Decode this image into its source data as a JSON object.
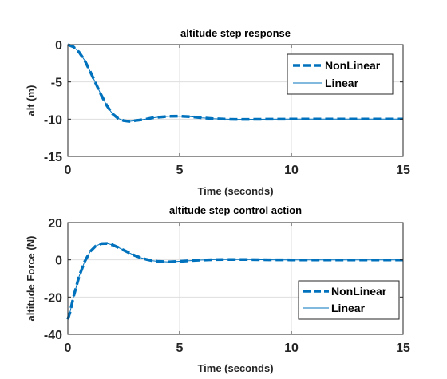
{
  "chart_data": [
    {
      "type": "line",
      "title": "altitude step response",
      "xlabel": "Time (seconds)",
      "ylabel": "alt (m)",
      "xlim": [
        0,
        15
      ],
      "ylim": [
        -15,
        0
      ],
      "xticks": [
        0,
        5,
        10,
        15
      ],
      "yticks": [
        0,
        -5,
        -10,
        -15
      ],
      "xtick_labels": [
        "0",
        "5",
        "10",
        "15"
      ],
      "ytick_labels": [
        "0",
        "-5",
        "-10",
        "-15"
      ],
      "grid": true,
      "legend": "top-right",
      "x": [
        0,
        0.25,
        0.5,
        0.75,
        1.0,
        1.25,
        1.5,
        1.75,
        2.0,
        2.25,
        2.5,
        2.75,
        3.0,
        3.25,
        3.5,
        3.75,
        4.0,
        4.5,
        5.0,
        5.5,
        6.0,
        6.5,
        7.0,
        7.5,
        8.0,
        9.0,
        10.0,
        11.0,
        12.0,
        13.0,
        14.0,
        15.0
      ],
      "series": [
        {
          "name": "NonLinear",
          "style": "dashed-thick",
          "color": "#0072BD",
          "values": [
            0,
            -0.3,
            -1.0,
            -2.1,
            -3.6,
            -5.2,
            -6.8,
            -8.2,
            -9.3,
            -9.9,
            -10.2,
            -10.3,
            -10.2,
            -10.1,
            -10.0,
            -9.85,
            -9.75,
            -9.62,
            -9.6,
            -9.68,
            -9.82,
            -9.93,
            -10.0,
            -10.03,
            -10.03,
            -10.01,
            -10.0,
            -10.0,
            -10.0,
            -10.0,
            -10.0,
            -10.0
          ]
        },
        {
          "name": "Linear",
          "style": "solid-thin",
          "color": "#0072BD",
          "values": [
            0,
            -0.3,
            -1.0,
            -2.1,
            -3.6,
            -5.2,
            -6.8,
            -8.2,
            -9.3,
            -9.9,
            -10.2,
            -10.3,
            -10.2,
            -10.1,
            -10.0,
            -9.85,
            -9.75,
            -9.62,
            -9.6,
            -9.68,
            -9.82,
            -9.93,
            -10.0,
            -10.03,
            -10.03,
            -10.01,
            -10.0,
            -10.0,
            -10.0,
            -10.0,
            -10.0,
            -10.0
          ]
        }
      ]
    },
    {
      "type": "line",
      "title": "altitude step control action",
      "xlabel": "Time (seconds)",
      "ylabel": "altitude Force (N)",
      "xlim": [
        0,
        15
      ],
      "ylim": [
        -40,
        20
      ],
      "xticks": [
        0,
        5,
        10,
        15
      ],
      "yticks": [
        20,
        0,
        -20,
        -40
      ],
      "xtick_labels": [
        "0",
        "5",
        "10",
        "15"
      ],
      "ytick_labels": [
        "20",
        "0",
        "-20",
        "-40"
      ],
      "grid": true,
      "legend": "bottom-right",
      "x": [
        0,
        0.1,
        0.25,
        0.5,
        0.75,
        1.0,
        1.25,
        1.5,
        1.75,
        2.0,
        2.25,
        2.5,
        2.75,
        3.0,
        3.25,
        3.5,
        3.75,
        4.0,
        4.5,
        5.0,
        5.5,
        6.0,
        6.5,
        7.0,
        7.5,
        8.0,
        9.0,
        10.0,
        11.0,
        12.0,
        13.0,
        14.0,
        15.0
      ],
      "series": [
        {
          "name": "NonLinear",
          "style": "dashed-thick",
          "color": "#0072BD",
          "values": [
            -32,
            -28,
            -20,
            -9,
            -1,
            4.5,
            7.5,
            8.7,
            8.8,
            8.0,
            6.7,
            5.2,
            3.7,
            2.3,
            1.2,
            0.3,
            -0.4,
            -0.8,
            -1.1,
            -0.8,
            -0.4,
            -0.1,
            0.1,
            0.2,
            0.2,
            0.15,
            0.05,
            0.0,
            0.0,
            0.0,
            0.0,
            0.0,
            0.0
          ]
        },
        {
          "name": "Linear",
          "style": "solid-thin",
          "color": "#0072BD",
          "values": [
            -32,
            -28,
            -20,
            -9,
            -1,
            4.5,
            7.5,
            8.7,
            8.8,
            8.0,
            6.7,
            5.2,
            3.7,
            2.3,
            1.2,
            0.3,
            -0.4,
            -0.8,
            -1.1,
            -0.8,
            -0.4,
            -0.1,
            0.1,
            0.2,
            0.2,
            0.15,
            0.05,
            0.0,
            0.0,
            0.0,
            0.0,
            0.0,
            0.0
          ]
        }
      ]
    }
  ]
}
